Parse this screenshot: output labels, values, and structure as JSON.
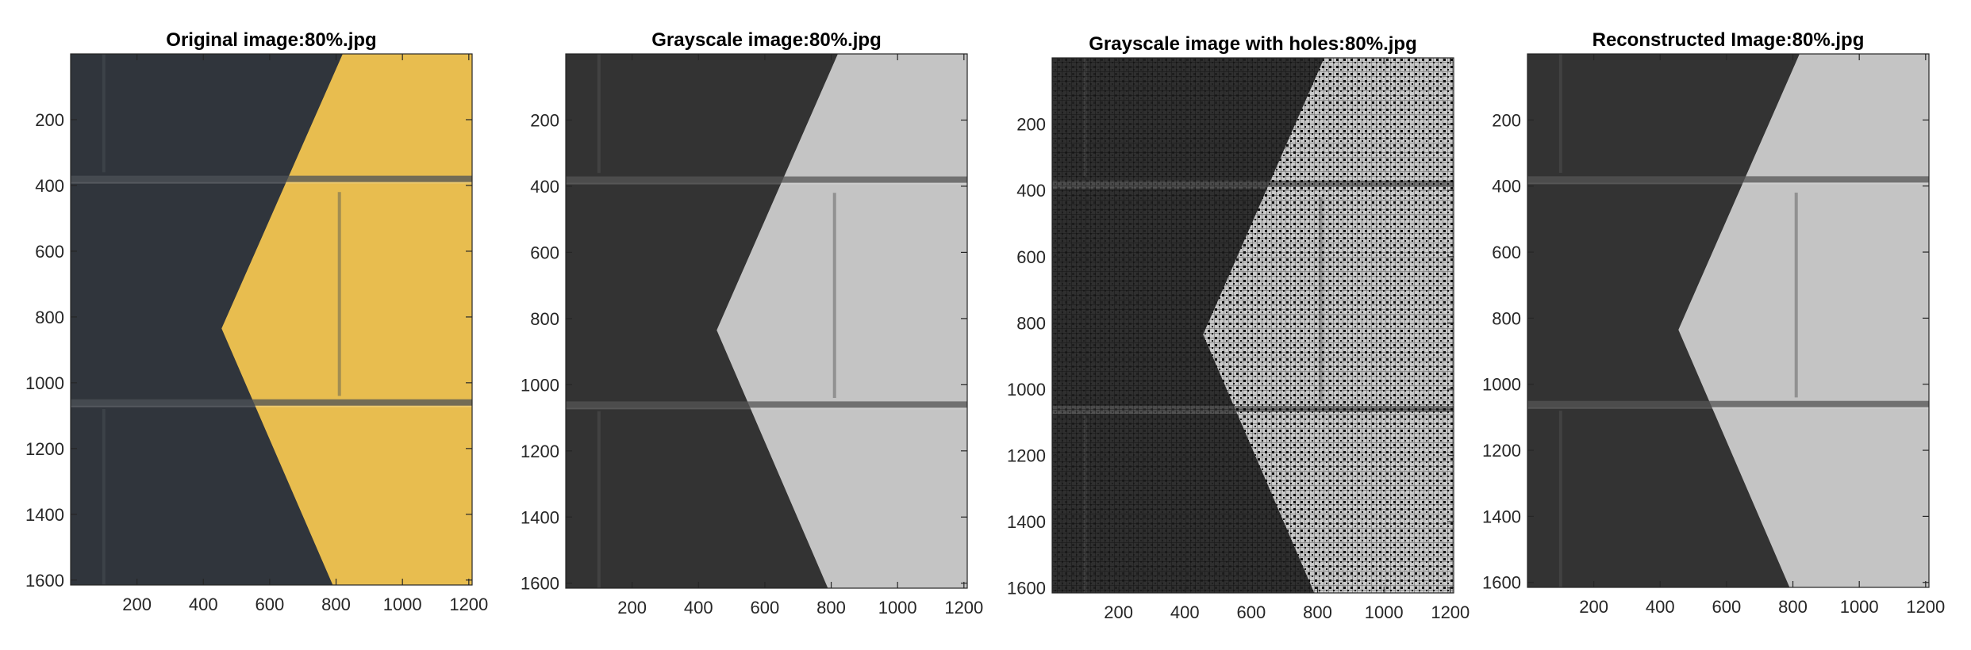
{
  "panels": [
    {
      "id": "original",
      "title": "Original image:80%.jpg",
      "variant": "color",
      "colors": {
        "dark": "#30353c",
        "light": "#e8bd4f",
        "mortar": "#4c5157"
      }
    },
    {
      "id": "grayscale",
      "title": "Grayscale image:80%.jpg",
      "variant": "gray",
      "colors": {
        "dark": "#333333",
        "light": "#c4c4c4",
        "mortar": "#555555"
      }
    },
    {
      "id": "holes",
      "title": "Grayscale image with holes:80%.jpg",
      "variant": "holes",
      "colors": {
        "dark": "#2f2f2f",
        "light": "#c8c8c8",
        "mortar": "#555555",
        "hole": "#000000"
      }
    },
    {
      "id": "reconstructed",
      "title": "Reconstructed Image:80%.jpg",
      "variant": "gray",
      "colors": {
        "dark": "#333333",
        "light": "#c4c4c4",
        "mortar": "#555555"
      }
    }
  ],
  "axes": {
    "x_ticks": [
      200,
      400,
      600,
      800,
      1000,
      1200
    ],
    "y_ticks": [
      200,
      400,
      600,
      800,
      1000,
      1200,
      1400,
      1600
    ],
    "xlim": [
      0,
      1210
    ],
    "ylim": [
      0,
      1615
    ]
  }
}
